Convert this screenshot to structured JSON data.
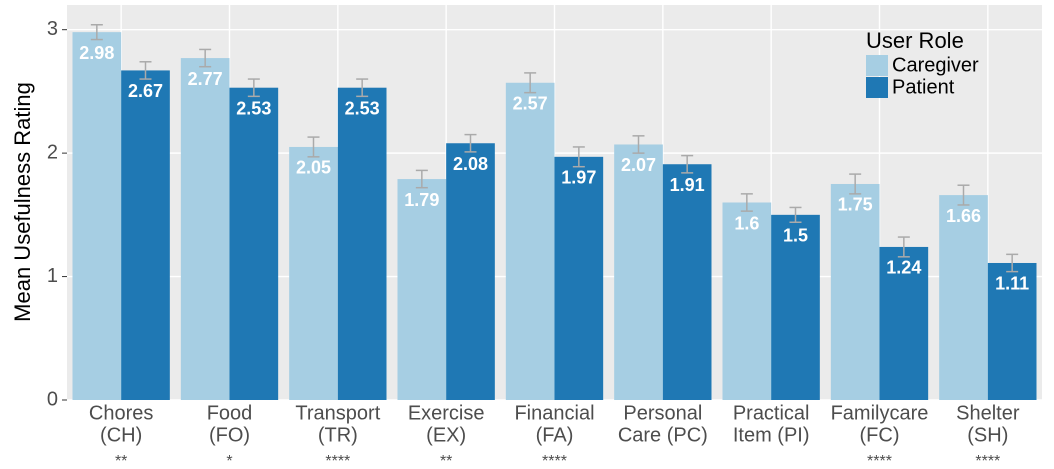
{
  "chart_data": {
    "type": "bar",
    "y_label": "Mean Usefulness Rating",
    "categories": [
      [
        "Chores",
        "(CH)"
      ],
      [
        "Food",
        "(FO)"
      ],
      [
        "Transport",
        "(TR)"
      ],
      [
        "Exercise",
        "(EX)"
      ],
      [
        "Financial",
        "(FA)"
      ],
      [
        "Personal",
        "Care (PC)"
      ],
      [
        "Practical",
        "Item (PI)"
      ],
      [
        "Familycare",
        "(FC)"
      ],
      [
        "Shelter",
        "(SH)"
      ]
    ],
    "significance": [
      "**",
      "*",
      "****",
      "**",
      "****",
      null,
      null,
      "****",
      "****"
    ],
    "series": [
      {
        "name": "Caregiver",
        "color": "#a6cee3",
        "values": [
          2.98,
          2.77,
          2.05,
          1.79,
          2.57,
          2.07,
          1.6,
          1.75,
          1.66
        ],
        "errors": [
          0.06,
          0.07,
          0.08,
          0.07,
          0.08,
          0.07,
          0.07,
          0.08,
          0.08
        ]
      },
      {
        "name": "Patient",
        "color": "#1f78b4",
        "values": [
          2.67,
          2.53,
          2.53,
          2.08,
          1.97,
          1.91,
          1.5,
          1.24,
          1.11
        ],
        "errors": [
          0.07,
          0.07,
          0.07,
          0.07,
          0.08,
          0.07,
          0.06,
          0.08,
          0.07
        ]
      }
    ],
    "legend_title": "User Role",
    "legend": "top-right",
    "ylim": [
      0,
      3.2
    ],
    "yticks": [
      0,
      1,
      2,
      3
    ],
    "grid": true
  }
}
